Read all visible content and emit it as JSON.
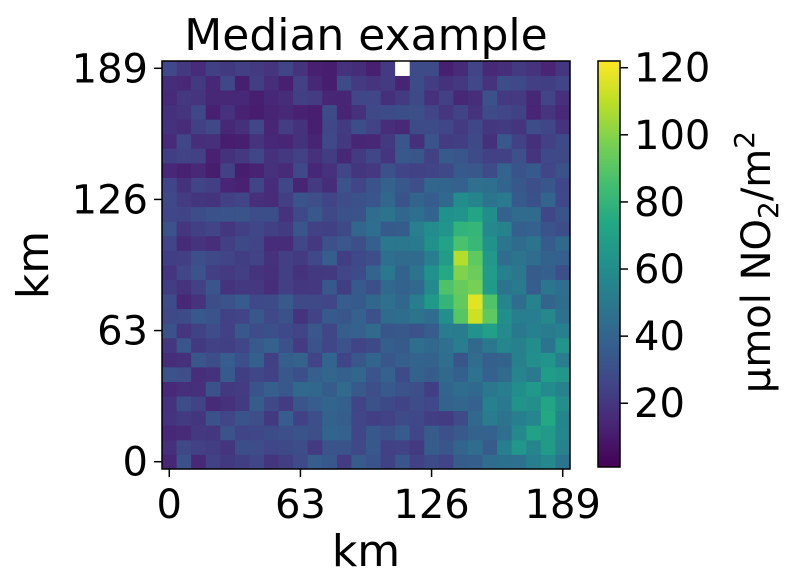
{
  "chart_data": {
    "type": "heatmap",
    "title": "Median example",
    "xlabel": "km",
    "ylabel": "km",
    "colorbar_label": "μmol NO2/m2",
    "colorbar_label_parts": [
      "μmol NO",
      "2",
      "/m",
      "2"
    ],
    "x_ticks": [
      0,
      63,
      126,
      189
    ],
    "y_ticks": [
      0,
      63,
      126,
      189
    ],
    "xlim": [
      0,
      189
    ],
    "ylim": [
      0,
      189
    ],
    "colorbar_ticks": [
      20,
      40,
      60,
      80,
      100,
      120
    ],
    "color_range": [
      1,
      122
    ],
    "colormap": "viridis",
    "grid_size": [
      28,
      28
    ],
    "cell_km": 7,
    "missing_value_color": "#ffffff",
    "missing_cells": [
      [
        16,
        27
      ]
    ],
    "grid": false,
    "colorbar_position": "right"
  }
}
